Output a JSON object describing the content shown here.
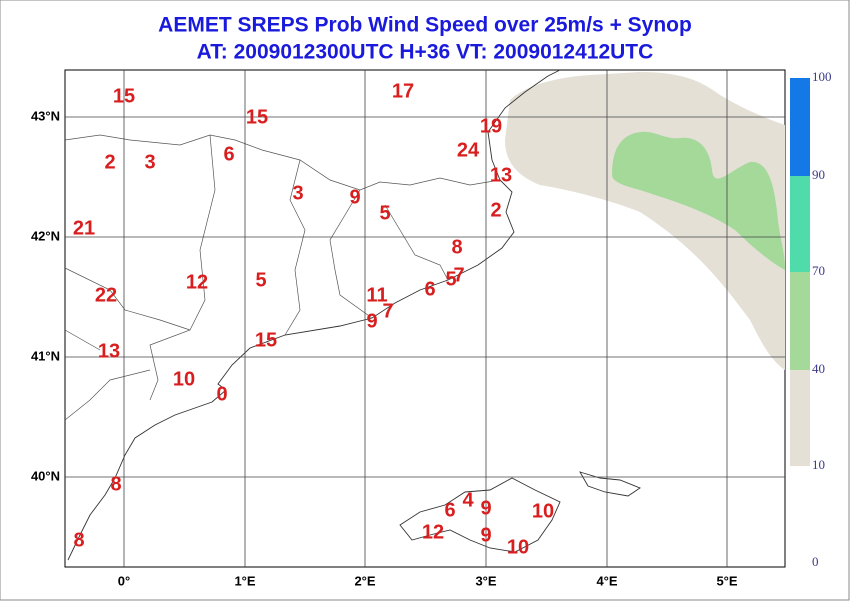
{
  "header": {
    "title": "AEMET SREPS Prob Wind Speed over 25m/s + Synop",
    "subtitle": "AT: 2009012300UTC H+36 VT: 2009012412UTC"
  },
  "map": {
    "latitude_labels": [
      "43°N",
      "42°N",
      "41°N",
      "40°N"
    ],
    "longitude_labels": [
      "0°",
      "1°E",
      "2°E",
      "3°E",
      "4°E",
      "5°E"
    ],
    "stations": [
      "15",
      "17",
      "15",
      "19",
      "2",
      "3",
      "6",
      "24",
      "13",
      "3",
      "9",
      "5",
      "2",
      "21",
      "8",
      "22",
      "12",
      "5",
      "11",
      "5",
      "7",
      "6",
      "9",
      "7",
      "15",
      "13",
      "10",
      "0",
      "8",
      "8",
      "6",
      "4",
      "9",
      "10",
      "12",
      "9",
      "10"
    ]
  },
  "colorbar": {
    "labels": [
      "100",
      "90",
      "70",
      "40",
      "10",
      "0"
    ]
  }
}
